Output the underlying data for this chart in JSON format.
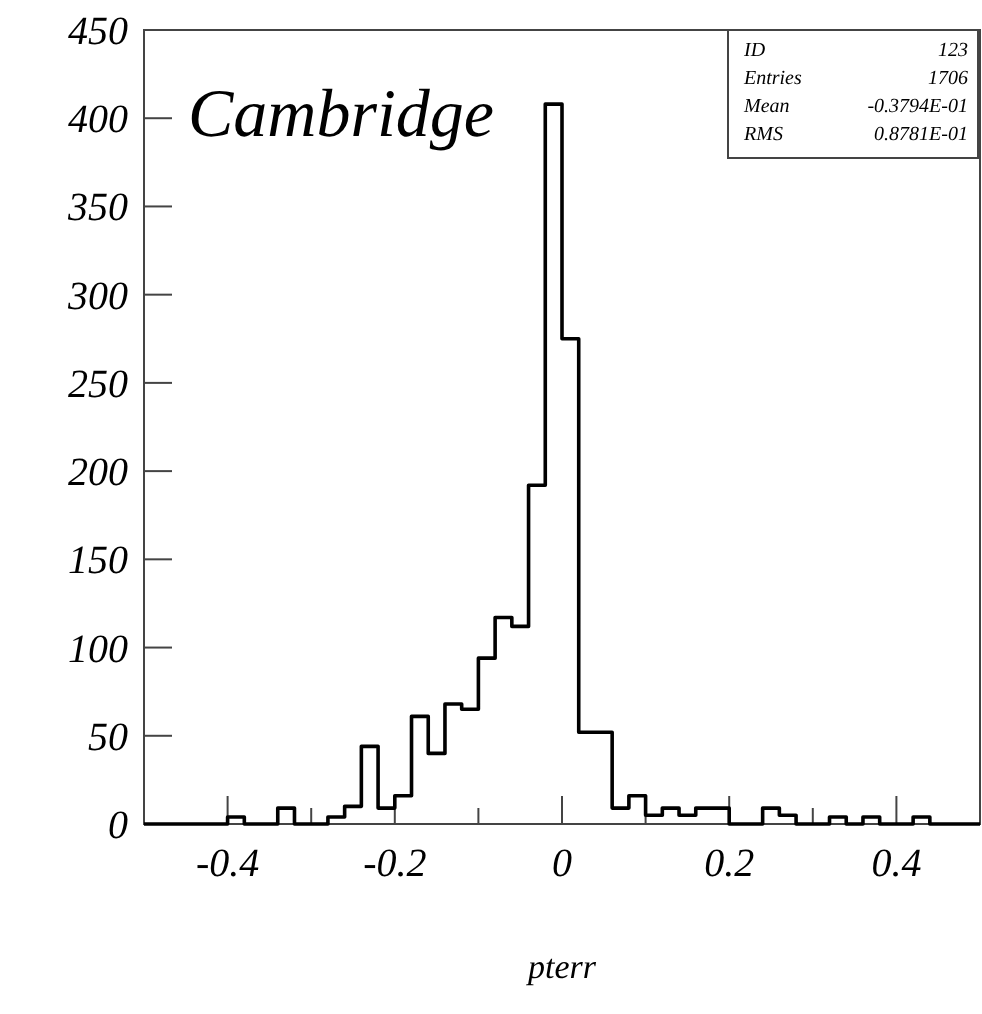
{
  "chart_data": {
    "type": "histogram",
    "xlabel": "pterr",
    "bins": [
      -0.5,
      -0.48,
      -0.46,
      -0.44,
      -0.42,
      -0.4,
      -0.38,
      -0.36,
      -0.34,
      -0.32,
      -0.3,
      -0.28,
      -0.26,
      -0.24,
      -0.22,
      -0.2,
      -0.18,
      -0.16,
      -0.14,
      -0.12,
      -0.1,
      -0.08,
      -0.06,
      -0.04,
      -0.02,
      0,
      0.02,
      0.04,
      0.06,
      0.08,
      0.1,
      0.12,
      0.14,
      0.16,
      0.18,
      0.2,
      0.22,
      0.24,
      0.26,
      0.28,
      0.3,
      0.32,
      0.34,
      0.36,
      0.38,
      0.4,
      0.42,
      0.44,
      0.46,
      0.48,
      0.5
    ],
    "values": [
      0,
      0,
      0,
      0,
      0,
      4,
      0,
      0,
      9,
      0,
      0,
      4,
      10,
      44,
      9,
      16,
      61,
      40,
      68,
      65,
      94,
      117,
      112,
      192,
      408,
      275,
      52,
      52,
      9,
      16,
      5,
      9,
      5,
      9,
      9,
      0,
      0,
      9,
      5,
      0,
      0,
      4,
      0,
      4,
      0,
      0,
      4,
      0,
      0,
      0
    ],
    "color": "#000000",
    "xlim": [
      -0.5,
      0.5
    ],
    "xticks": [
      {
        "value": -0.4,
        "label": "-0.4"
      },
      {
        "value": -0.3,
        "label": null
      },
      {
        "value": -0.2,
        "label": "-0.2"
      },
      {
        "value": -0.1,
        "label": null
      },
      0,
      {
        "value": 0.1,
        "label": null
      },
      {
        "value": 0.2,
        "label": "0.2"
      },
      {
        "value": 0.3,
        "label": null
      },
      {
        "value": 0.4,
        "label": "0.4"
      }
    ],
    "ylim": [
      0,
      450
    ],
    "yticks": [
      0,
      50,
      100,
      150,
      200,
      250,
      300,
      350,
      400,
      450
    ],
    "annotations": [
      "Cambridge",
      "ID",
      "123",
      "Entries",
      "1706",
      "Mean",
      "-0.3794E-01",
      "RMS",
      "0.8781E-01"
    ]
  }
}
